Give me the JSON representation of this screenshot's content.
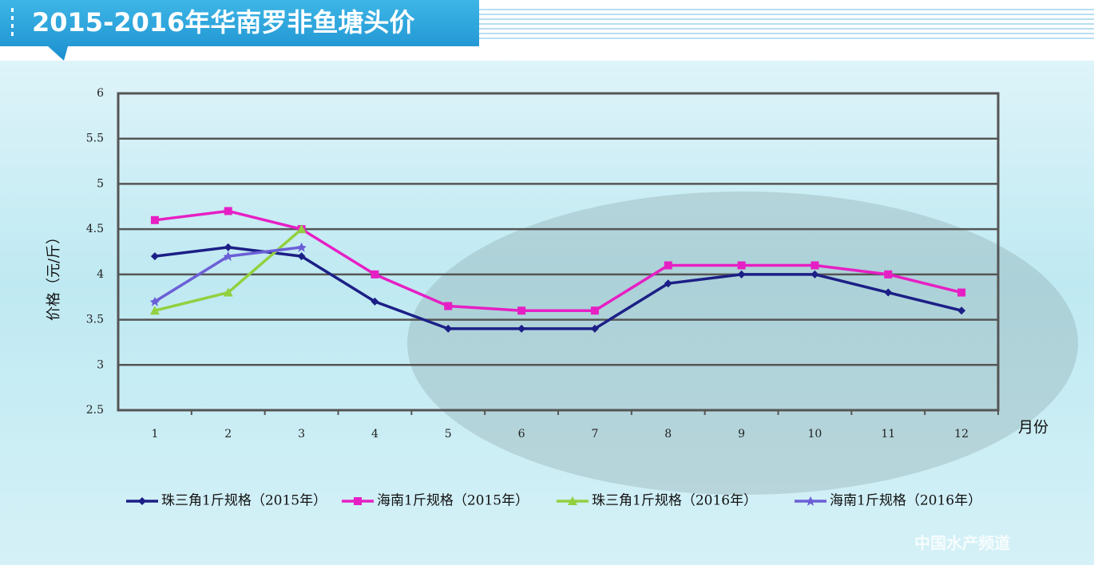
{
  "chart_data": {
    "type": "line",
    "title": "2015-2016年华南罗非鱼塘头价",
    "y_label": "价格（元/斤）",
    "x_label": "月份",
    "watermark": "中国水产频道",
    "categories": [
      "1",
      "2",
      "3",
      "4",
      "5",
      "6",
      "7",
      "8",
      "9",
      "10",
      "11",
      "12"
    ],
    "ylim": [
      2.5,
      6
    ],
    "yticks": [
      2.5,
      3,
      3.5,
      4,
      4.5,
      5,
      5.5,
      6
    ],
    "grid": true,
    "legend": "bottom",
    "series": [
      {
        "name": "珠三角1斤规格（2015年）",
        "color": "#1c1f86",
        "values": [
          4.2,
          4.3,
          4.2,
          3.7,
          3.4,
          3.4,
          3.4,
          3.9,
          4.0,
          4.0,
          3.8,
          3.6
        ]
      },
      {
        "name": "海南1斤规格（2015年）",
        "color": "#e61fc4",
        "values": [
          4.6,
          4.7,
          4.5,
          4.0,
          3.65,
          3.6,
          3.6,
          4.1,
          4.1,
          4.1,
          4.0,
          3.8
        ]
      },
      {
        "name": "珠三角1斤规格（2016年）",
        "color": "#92d03f",
        "values": [
          3.6,
          3.8,
          4.5,
          null,
          null,
          null,
          null,
          null,
          null,
          null,
          null,
          null
        ]
      },
      {
        "name": "海南1斤规格（2016年）",
        "color": "#6b5fd6",
        "values": [
          3.7,
          4.2,
          4.3,
          null,
          null,
          null,
          null,
          null,
          null,
          null,
          null,
          null
        ]
      }
    ]
  }
}
